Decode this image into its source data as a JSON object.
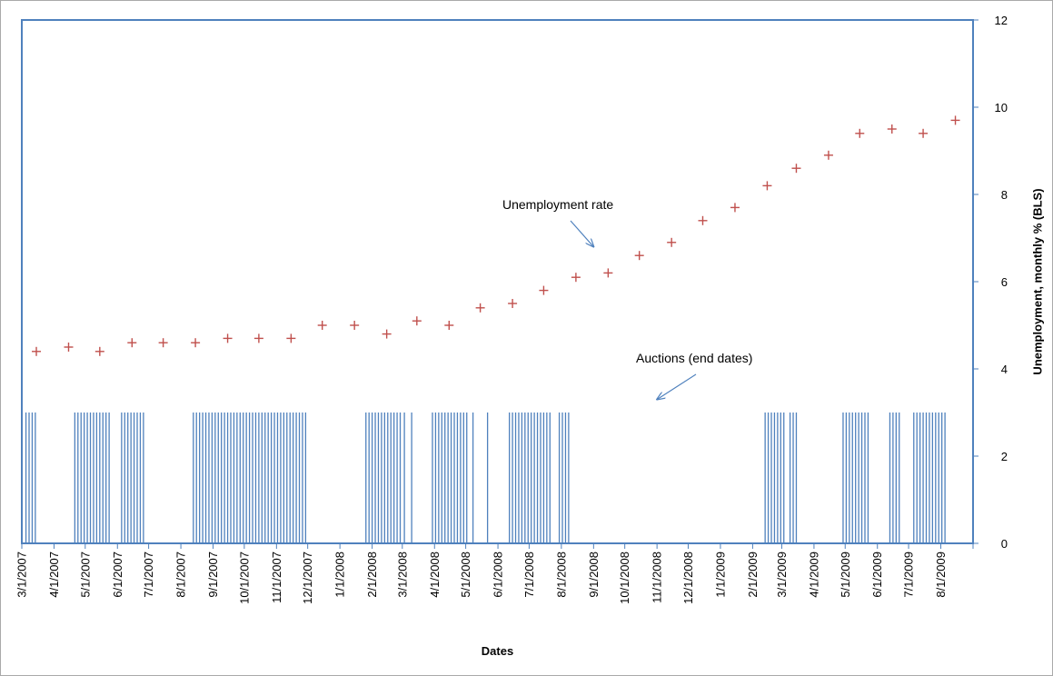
{
  "chart_data": {
    "type": "scatter",
    "title": "",
    "xlabel": "Dates",
    "ylabel": "Unemployment, monthly % (BLS)",
    "ylim": [
      0,
      12
    ],
    "yticks": [
      0,
      2,
      4,
      6,
      8,
      10,
      12
    ],
    "xlim": [
      "2007-03-01",
      "2009-09-01"
    ],
    "xtick_labels": [
      "3/1/2007",
      "4/1/2007",
      "5/1/2007",
      "6/1/2007",
      "7/1/2007",
      "8/1/2007",
      "9/1/2007",
      "10/1/2007",
      "11/1/2007",
      "12/1/2007",
      "1/1/2008",
      "2/1/2008",
      "3/1/2008",
      "4/1/2008",
      "5/1/2008",
      "6/1/2008",
      "7/1/2008",
      "8/1/2008",
      "9/1/2008",
      "10/1/2008",
      "11/1/2008",
      "12/1/2008",
      "1/1/2009",
      "2/1/2009",
      "3/1/2009",
      "4/1/2009",
      "5/1/2009",
      "6/1/2009",
      "7/1/2009",
      "8/1/2009"
    ],
    "grid": false,
    "axis_color": "#4f81bd",
    "series": [
      {
        "kind": "scatter",
        "marker": "plus",
        "color": "#c0504d",
        "x": [
          "2007-03-15",
          "2007-04-15",
          "2007-05-15",
          "2007-06-15",
          "2007-07-15",
          "2007-08-15",
          "2007-09-15",
          "2007-10-15",
          "2007-11-15",
          "2007-12-15",
          "2008-01-15",
          "2008-02-15",
          "2008-03-15",
          "2008-04-15",
          "2008-05-15",
          "2008-06-15",
          "2008-07-15",
          "2008-08-15",
          "2008-09-15",
          "2008-10-15",
          "2008-11-15",
          "2008-12-15",
          "2009-01-15",
          "2009-02-15",
          "2009-03-15",
          "2009-04-15",
          "2009-05-15",
          "2009-06-15",
          "2009-07-15",
          "2009-08-15"
        ],
        "y": [
          4.4,
          4.5,
          4.4,
          4.6,
          4.6,
          4.6,
          4.7,
          4.7,
          4.7,
          5.0,
          5.0,
          4.8,
          5.1,
          5.0,
          5.4,
          5.5,
          5.8,
          6.1,
          6.2,
          6.6,
          6.9,
          7.4,
          7.7,
          8.2,
          8.6,
          8.9,
          9.4,
          9.5,
          9.4,
          9.7
        ]
      },
      {
        "kind": "spikes",
        "color": "#4f81bd",
        "height": 3,
        "x": [
          "2007-03-05",
          "2007-03-08",
          "2007-03-11",
          "2007-03-14",
          "2007-04-21",
          "2007-04-24",
          "2007-04-27",
          "2007-04-30",
          "2007-05-03",
          "2007-05-06",
          "2007-05-09",
          "2007-05-12",
          "2007-05-15",
          "2007-05-18",
          "2007-05-21",
          "2007-05-24",
          "2007-06-05",
          "2007-06-08",
          "2007-06-11",
          "2007-06-14",
          "2007-06-17",
          "2007-06-20",
          "2007-06-23",
          "2007-06-26",
          "2007-08-13",
          "2007-08-16",
          "2007-08-19",
          "2007-08-22",
          "2007-08-25",
          "2007-08-28",
          "2007-08-31",
          "2007-09-03",
          "2007-09-06",
          "2007-09-09",
          "2007-09-12",
          "2007-09-15",
          "2007-09-18",
          "2007-09-21",
          "2007-09-24",
          "2007-09-27",
          "2007-09-30",
          "2007-10-03",
          "2007-10-06",
          "2007-10-09",
          "2007-10-12",
          "2007-10-15",
          "2007-10-18",
          "2007-10-21",
          "2007-10-24",
          "2007-10-27",
          "2007-10-30",
          "2007-11-02",
          "2007-11-05",
          "2007-11-08",
          "2007-11-11",
          "2007-11-14",
          "2007-11-17",
          "2007-11-20",
          "2007-11-23",
          "2007-11-26",
          "2007-11-29",
          "2008-01-26",
          "2008-01-29",
          "2008-02-01",
          "2008-02-04",
          "2008-02-07",
          "2008-02-10",
          "2008-02-13",
          "2008-02-16",
          "2008-02-19",
          "2008-02-22",
          "2008-02-25",
          "2008-02-28",
          "2008-03-03",
          "2008-03-10",
          "2008-03-30",
          "2008-04-02",
          "2008-04-05",
          "2008-04-08",
          "2008-04-11",
          "2008-04-14",
          "2008-04-17",
          "2008-04-20",
          "2008-04-23",
          "2008-04-26",
          "2008-04-29",
          "2008-05-02",
          "2008-05-08",
          "2008-05-22",
          "2008-06-12",
          "2008-06-15",
          "2008-06-18",
          "2008-06-21",
          "2008-06-24",
          "2008-06-27",
          "2008-06-30",
          "2008-07-03",
          "2008-07-06",
          "2008-07-09",
          "2008-07-12",
          "2008-07-15",
          "2008-07-18",
          "2008-07-21",
          "2008-07-30",
          "2008-08-02",
          "2008-08-05",
          "2008-08-08",
          "2009-02-13",
          "2009-02-16",
          "2009-02-19",
          "2009-02-22",
          "2009-02-25",
          "2009-02-28",
          "2009-03-03",
          "2009-03-09",
          "2009-03-12",
          "2009-03-15",
          "2009-04-29",
          "2009-05-02",
          "2009-05-05",
          "2009-05-08",
          "2009-05-11",
          "2009-05-14",
          "2009-05-17",
          "2009-05-20",
          "2009-05-23",
          "2009-06-13",
          "2009-06-16",
          "2009-06-19",
          "2009-06-22",
          "2009-07-06",
          "2009-07-09",
          "2009-07-12",
          "2009-07-15",
          "2009-07-18",
          "2009-07-21",
          "2009-07-24",
          "2009-07-27",
          "2009-07-30",
          "2009-08-02",
          "2009-08-05"
        ]
      }
    ],
    "annotations": [
      {
        "text": "Unemployment rate",
        "arrow_to": [
          "2008-09-01",
          6.8
        ]
      },
      {
        "text": "Auctions (end dates)",
        "arrow_to": [
          "2008-11-01",
          3.3
        ]
      }
    ]
  }
}
